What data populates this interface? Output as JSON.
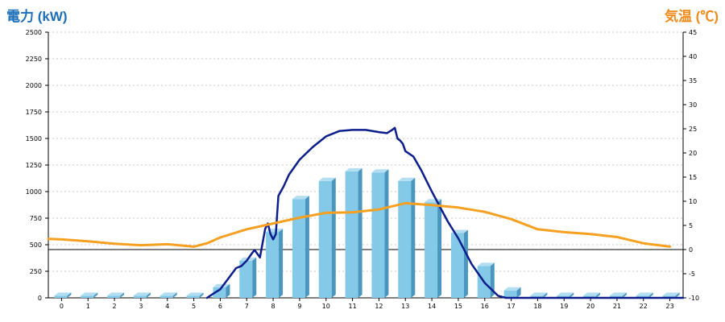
{
  "chart_data": {
    "type": "bar",
    "left_axis_label": "電力 (kW)",
    "right_axis_label": "気温 (℃)",
    "categories": [
      "0",
      "1",
      "2",
      "3",
      "4",
      "5",
      "6",
      "7",
      "8",
      "9",
      "10",
      "11",
      "12",
      "13",
      "14",
      "15",
      "16",
      "17",
      "18",
      "19",
      "20",
      "21",
      "22",
      "23"
    ],
    "y_left": {
      "min": 0,
      "max": 2500,
      "ticks": [
        0,
        250,
        500,
        750,
        1000,
        1250,
        1500,
        1750,
        2000,
        2250,
        2500
      ]
    },
    "y_right": {
      "min": -10,
      "max": 45,
      "ticks": [
        -10,
        -5,
        0,
        5,
        10,
        15,
        20,
        25,
        30,
        35,
        40,
        45
      ]
    },
    "grid": true,
    "series": [
      {
        "kind": "bar",
        "axis": "left",
        "values": [
          20,
          20,
          20,
          20,
          20,
          20,
          100,
          350,
          620,
          930,
          1100,
          1190,
          1180,
          1100,
          900,
          610,
          300,
          70,
          20,
          20,
          20,
          20,
          20,
          20
        ]
      },
      {
        "kind": "line",
        "axis": "left",
        "x": [
          5.5,
          5.8,
          6.0,
          6.3,
          6.6,
          6.8,
          7.0,
          7.2,
          7.3,
          7.5,
          7.7,
          7.8,
          7.9,
          8.0,
          8.1,
          8.2,
          8.4,
          8.6,
          9.0,
          9.5,
          10.0,
          10.5,
          11.0,
          11.5,
          12.0,
          12.3,
          12.5,
          12.6,
          12.7,
          12.8,
          12.9,
          13.0,
          13.3,
          13.6,
          13.8,
          14.0,
          14.3,
          14.6,
          15.0,
          15.5,
          16.0,
          16.5,
          16.8,
          17.0,
          17.5,
          23.5
        ],
        "y": [
          0,
          50,
          80,
          180,
          280,
          300,
          350,
          420,
          450,
          380,
          650,
          700,
          600,
          550,
          600,
          960,
          1050,
          1160,
          1300,
          1420,
          1520,
          1570,
          1580,
          1580,
          1560,
          1550,
          1580,
          1600,
          1500,
          1480,
          1450,
          1380,
          1330,
          1200,
          1100,
          1000,
          860,
          720,
          560,
          320,
          140,
          20,
          0,
          0,
          0,
          0
        ]
      },
      {
        "kind": "line",
        "axis": "right",
        "x": [
          -0.5,
          0,
          1,
          2,
          3,
          4,
          5,
          5.5,
          6,
          7,
          8,
          9,
          10,
          11,
          12,
          13,
          14,
          15,
          16,
          17,
          18,
          19,
          20,
          21,
          22,
          23
        ],
        "y": [
          2.2,
          2.1,
          1.7,
          1.2,
          0.9,
          1.1,
          0.6,
          1.3,
          2.5,
          4.2,
          5.4,
          6.6,
          7.6,
          7.7,
          8.3,
          9.6,
          9.2,
          8.7,
          7.8,
          6.3,
          4.2,
          3.6,
          3.2,
          2.6,
          1.3,
          0.6
        ]
      }
    ],
    "colors": {
      "bar": "#84c9e8",
      "bar_side": "#4a96bf",
      "bar_top": "#b3def2",
      "power_line": "#0c1d8c",
      "temp_line": "#f5a021",
      "left_title": "#1d6fb8",
      "right_title": "#f08a1c",
      "grid": "#c8c8c8"
    }
  }
}
